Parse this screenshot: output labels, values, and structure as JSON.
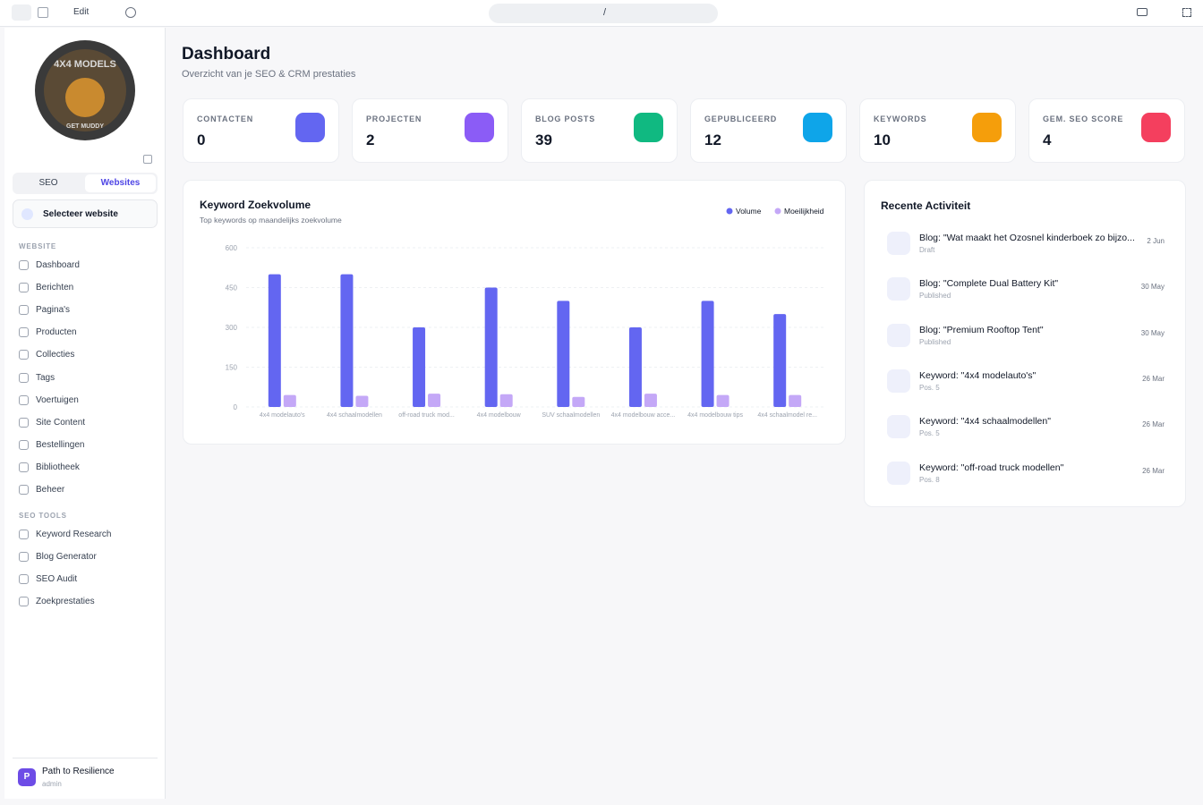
{
  "toolbar": {
    "edit": "Edit",
    "url": "/"
  },
  "sidebar": {
    "logo": [
      "4X4 MODELS",
      "GET MUDDY"
    ],
    "tabs": [
      "SEO",
      "Websites"
    ],
    "site_select": "Selecteer website",
    "sections": [
      {
        "title": "WEBSITE",
        "items": [
          "Dashboard",
          "Berichten",
          "Pagina's",
          "Producten",
          "Collecties",
          "Tags",
          "Voertuigen",
          "Site Content",
          "Bestellingen",
          "Bibliotheek",
          "Beheer"
        ]
      },
      {
        "title": "SEO TOOLS",
        "items": [
          "Keyword Research",
          "Blog Generator",
          "SEO Audit",
          "Zoekprestaties"
        ]
      }
    ],
    "user": {
      "initial": "P",
      "name": "Path to Resilience",
      "role": "admin"
    }
  },
  "header": {
    "title": "Dashboard",
    "subtitle": "Overzicht van je SEO & CRM prestaties"
  },
  "stats": [
    {
      "label": "CONTACTEN",
      "value": 0,
      "color": "#6366f1"
    },
    {
      "label": "PROJECTEN",
      "value": 2,
      "color": "#8b5cf6"
    },
    {
      "label": "BLOG POSTS",
      "value": 39,
      "color": "#10b981"
    },
    {
      "label": "GEPUBLICEERD",
      "value": 12,
      "color": "#0ea5e9"
    },
    {
      "label": "KEYWORDS",
      "value": 10,
      "color": "#f59e0b"
    },
    {
      "label": "GEM. SEO SCORE",
      "value": 4,
      "color": "#f43f5e"
    }
  ],
  "chart_data": {
    "type": "bar",
    "title": "Keyword Zoekvolume",
    "subtitle": "Top keywords op maandelijks zoekvolume",
    "categories": [
      "4x4 modelauto's",
      "4x4 schaalmodellen",
      "off-road truck mod...",
      "4x4 modelbouw",
      "SUV schaalmodellen",
      "4x4 modelbouw acce...",
      "4x4 modelbouw tips",
      "4x4 schaalmodel re..."
    ],
    "series": [
      {
        "name": "Volume",
        "color": "#6366f1",
        "values": [
          500,
          500,
          300,
          450,
          400,
          300,
          400,
          350
        ]
      },
      {
        "name": "Moeilijkheid",
        "color": "#c4a8f7",
        "values": [
          45,
          42,
          50,
          48,
          38,
          50,
          45,
          45
        ]
      }
    ],
    "ylim": [
      0,
      600
    ],
    "yticks": [
      0,
      150,
      300,
      450,
      600
    ],
    "grid": true
  },
  "activity": {
    "title": "Recente Activiteit",
    "items": [
      {
        "title": "Blog: \"Wat maakt het Ozosnel kinderboek zo bijzo...",
        "status": "Draft",
        "date": "2 Jun"
      },
      {
        "title": "Blog: \"Complete Dual Battery Kit\"",
        "status": "Published",
        "date": "30 May"
      },
      {
        "title": "Blog: \"Premium Rooftop Tent\"",
        "status": "Published",
        "date": "30 May"
      },
      {
        "title": "Keyword: \"4x4 modelauto's\"",
        "status": "Pos. 5",
        "date": "26 Mar"
      },
      {
        "title": "Keyword: \"4x4 schaalmodellen\"",
        "status": "Pos. 5",
        "date": "26 Mar"
      },
      {
        "title": "Keyword: \"off-road truck modellen\"",
        "status": "Pos. 8",
        "date": "26 Mar"
      }
    ]
  }
}
